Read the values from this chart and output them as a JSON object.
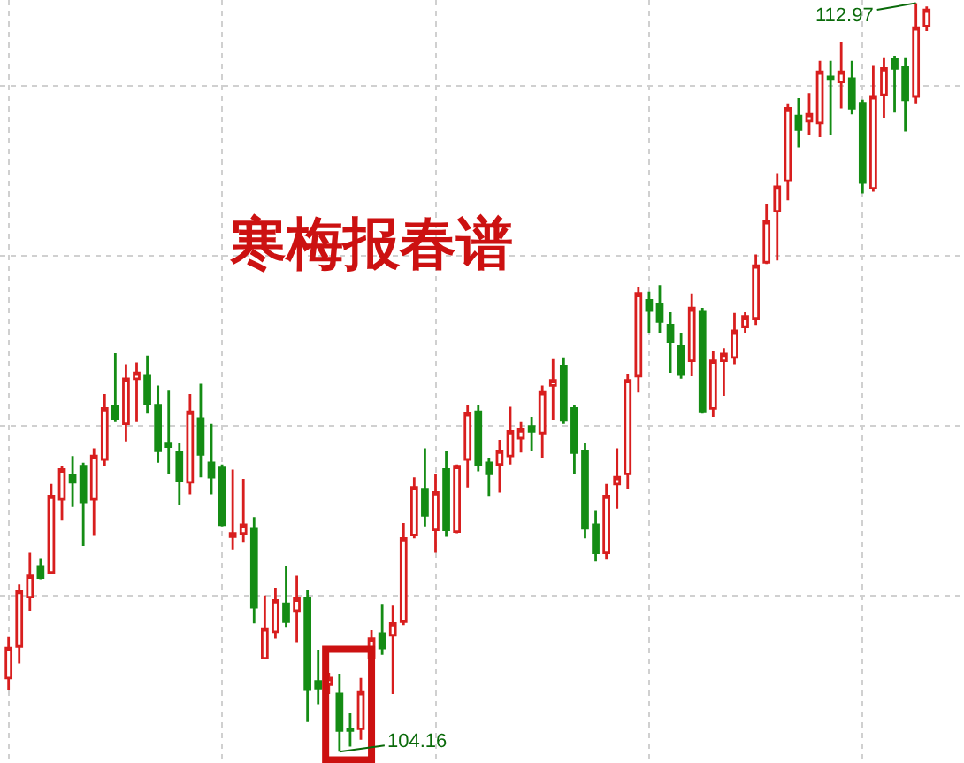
{
  "chart_data": {
    "type": "candlestick",
    "title": "寒梅报春谱",
    "categories": [
      null,
      null,
      null,
      null,
      null,
      null,
      null,
      null,
      null,
      null,
      null,
      null,
      null,
      null,
      null,
      null,
      null,
      null,
      null,
      null,
      null,
      null,
      null,
      null,
      null,
      null,
      null,
      null,
      null,
      null,
      null,
      null,
      null,
      null,
      null,
      null,
      null,
      null,
      null,
      null,
      null,
      null,
      null,
      null,
      null,
      null,
      null,
      null,
      null,
      null,
      null,
      null,
      null,
      null,
      null,
      null,
      null,
      null,
      null,
      null,
      null,
      null,
      null,
      null,
      null,
      null,
      null,
      null,
      null,
      null,
      null,
      null,
      null,
      null,
      null,
      null,
      null,
      null,
      null,
      null,
      null,
      null,
      null,
      null,
      null,
      null,
      null
    ],
    "ohlc": [
      [
        105.03,
        105.51,
        104.89,
        105.38
      ],
      [
        105.4,
        106.13,
        105.2,
        106.05
      ],
      [
        105.98,
        106.5,
        105.82,
        106.23
      ],
      [
        106.34,
        106.44,
        106.19,
        106.21
      ],
      [
        106.27,
        107.31,
        106.25,
        107.17
      ],
      [
        107.13,
        107.52,
        106.88,
        107.48
      ],
      [
        107.41,
        107.64,
        107.04,
        107.33
      ],
      [
        107.52,
        107.56,
        106.58,
        107.1
      ],
      [
        107.13,
        107.73,
        106.71,
        107.64
      ],
      [
        107.6,
        108.37,
        107.52,
        108.2
      ],
      [
        108.22,
        108.85,
        108.04,
        108.08
      ],
      [
        108.02,
        108.72,
        107.81,
        108.55
      ],
      [
        108.55,
        108.74,
        108.04,
        108.62
      ],
      [
        108.58,
        108.82,
        108.14,
        108.26
      ],
      [
        108.24,
        108.47,
        107.56,
        107.7
      ],
      [
        107.79,
        108.41,
        107.43,
        107.75
      ],
      [
        107.68,
        107.79,
        107.06,
        107.35
      ],
      [
        107.33,
        108.37,
        107.19,
        108.16
      ],
      [
        108.08,
        108.49,
        107.39,
        107.66
      ],
      [
        107.56,
        108.02,
        107.19,
        107.39
      ],
      [
        107.5,
        107.54,
        106.81,
        106.83
      ],
      [
        106.69,
        107.48,
        106.54,
        106.73
      ],
      [
        106.73,
        107.37,
        106.63,
        106.83
      ],
      [
        106.79,
        106.92,
        105.67,
        105.86
      ],
      [
        105.26,
        106.0,
        105.26,
        105.61
      ],
      [
        105.57,
        106.09,
        105.49,
        105.94
      ],
      [
        105.9,
        106.34,
        105.63,
        105.69
      ],
      [
        105.82,
        106.23,
        105.45,
        105.96
      ],
      [
        105.96,
        106.07,
        104.51,
        104.89
      ],
      [
        104.99,
        105.36,
        104.72,
        104.91
      ],
      [
        104.95,
        105.09,
        104.84,
        105.03
      ],
      [
        104.84,
        105.07,
        104.16,
        104.41
      ],
      [
        104.43,
        104.62,
        104.22,
        104.41
      ],
      [
        104.43,
        105.03,
        104.3,
        104.86
      ],
      [
        105.26,
        105.59,
        105.05,
        105.49
      ],
      [
        105.55,
        105.9,
        105.3,
        105.38
      ],
      [
        105.53,
        105.88,
        104.84,
        105.67
      ],
      [
        105.69,
        106.85,
        105.65,
        106.67
      ],
      [
        106.71,
        107.39,
        106.67,
        107.27
      ],
      [
        107.25,
        107.73,
        106.81,
        106.94
      ],
      [
        106.77,
        107.43,
        106.5,
        107.21
      ],
      [
        107.48,
        107.7,
        106.69,
        106.77
      ],
      [
        106.75,
        107.54,
        106.73,
        107.52
      ],
      [
        107.6,
        108.24,
        107.27,
        108.14
      ],
      [
        108.16,
        108.24,
        107.46,
        107.54
      ],
      [
        107.56,
        107.62,
        107.17,
        107.43
      ],
      [
        107.54,
        107.83,
        107.21,
        107.7
      ],
      [
        107.64,
        108.22,
        107.54,
        107.93
      ],
      [
        107.85,
        108.04,
        107.68,
        107.95
      ],
      [
        107.99,
        108.1,
        107.7,
        107.93
      ],
      [
        107.91,
        108.47,
        107.62,
        108.39
      ],
      [
        108.47,
        108.78,
        108.06,
        108.53
      ],
      [
        108.7,
        108.8,
        108.02,
        108.06
      ],
      [
        108.2,
        108.24,
        107.43,
        107.68
      ],
      [
        107.7,
        107.79,
        106.67,
        106.79
      ],
      [
        106.83,
        107.0,
        106.4,
        106.5
      ],
      [
        106.5,
        107.31,
        106.42,
        107.17
      ],
      [
        107.31,
        107.73,
        107.02,
        107.39
      ],
      [
        107.43,
        108.6,
        107.25,
        108.53
      ],
      [
        108.58,
        109.63,
        108.39,
        109.55
      ],
      [
        109.47,
        109.57,
        109.09,
        109.36
      ],
      [
        109.43,
        109.65,
        109.09,
        109.22
      ],
      [
        109.18,
        109.34,
        108.62,
        108.99
      ],
      [
        108.93,
        109.09,
        108.55,
        108.6
      ],
      [
        108.76,
        109.55,
        108.58,
        109.38
      ],
      [
        109.34,
        109.38,
        108.14,
        108.16
      ],
      [
        108.2,
        108.87,
        108.1,
        108.76
      ],
      [
        108.76,
        108.91,
        108.35,
        108.84
      ],
      [
        108.8,
        109.32,
        108.72,
        109.11
      ],
      [
        109.16,
        109.34,
        109.09,
        109.28
      ],
      [
        109.26,
        110.01,
        109.18,
        109.88
      ],
      [
        109.92,
        110.61,
        109.9,
        110.4
      ],
      [
        110.52,
        110.96,
        109.94,
        110.81
      ],
      [
        110.88,
        111.79,
        110.65,
        111.73
      ],
      [
        111.64,
        111.85,
        111.27,
        111.48
      ],
      [
        111.58,
        111.91,
        111.42,
        111.66
      ],
      [
        111.56,
        112.29,
        111.39,
        112.16
      ],
      [
        112.1,
        112.29,
        111.42,
        112.08
      ],
      [
        112.04,
        112.51,
        111.73,
        112.16
      ],
      [
        112.08,
        112.29,
        111.66,
        111.73
      ],
      [
        111.79,
        111.83,
        110.73,
        110.86
      ],
      [
        110.79,
        112.24,
        110.75,
        111.87
      ],
      [
        111.89,
        112.33,
        111.62,
        112.2
      ],
      [
        112.31,
        112.35,
        111.68,
        112.2
      ],
      [
        112.22,
        112.33,
        111.46,
        111.83
      ],
      [
        111.87,
        112.97,
        111.79,
        112.68
      ],
      [
        112.7,
        112.93,
        112.64,
        112.89
      ]
    ],
    "colors": [
      "#d81e1e",
      "#d81e1e",
      "#d81e1e",
      "#148c14",
      "#d81e1e",
      "#d81e1e",
      "#148c14",
      "#148c14",
      "#d81e1e",
      "#d81e1e",
      "#148c14",
      "#d81e1e",
      "#d81e1e",
      "#148c14",
      "#148c14",
      "#148c14",
      "#148c14",
      "#d81e1e",
      "#148c14",
      "#148c14",
      "#148c14",
      "#d81e1e",
      "#d81e1e",
      "#148c14",
      "#d81e1e",
      "#d81e1e",
      "#148c14",
      "#d81e1e",
      "#148c14",
      "#148c14",
      "#d81e1e",
      "#148c14",
      "#148c14",
      "#d81e1e",
      "#d81e1e",
      "#148c14",
      "#d81e1e",
      "#d81e1e",
      "#d81e1e",
      "#148c14",
      "#d81e1e",
      "#148c14",
      "#d81e1e",
      "#d81e1e",
      "#148c14",
      "#148c14",
      "#d81e1e",
      "#d81e1e",
      "#d81e1e",
      "#148c14",
      "#d81e1e",
      "#d81e1e",
      "#148c14",
      "#148c14",
      "#148c14",
      "#148c14",
      "#d81e1e",
      "#d81e1e",
      "#d81e1e",
      "#d81e1e",
      "#148c14",
      "#148c14",
      "#148c14",
      "#148c14",
      "#d81e1e",
      "#148c14",
      "#d81e1e",
      "#d81e1e",
      "#d81e1e",
      "#d81e1e",
      "#d81e1e",
      "#d81e1e",
      "#d81e1e",
      "#d81e1e",
      "#148c14",
      "#d81e1e",
      "#d81e1e",
      "#148c14",
      "#d81e1e",
      "#148c14",
      "#148c14",
      "#d81e1e",
      "#d81e1e",
      "#148c14",
      "#148c14",
      "#d81e1e",
      "#d81e1e"
    ],
    "annotations": [
      "112.97",
      "104.16"
    ],
    "grid": true
  }
}
